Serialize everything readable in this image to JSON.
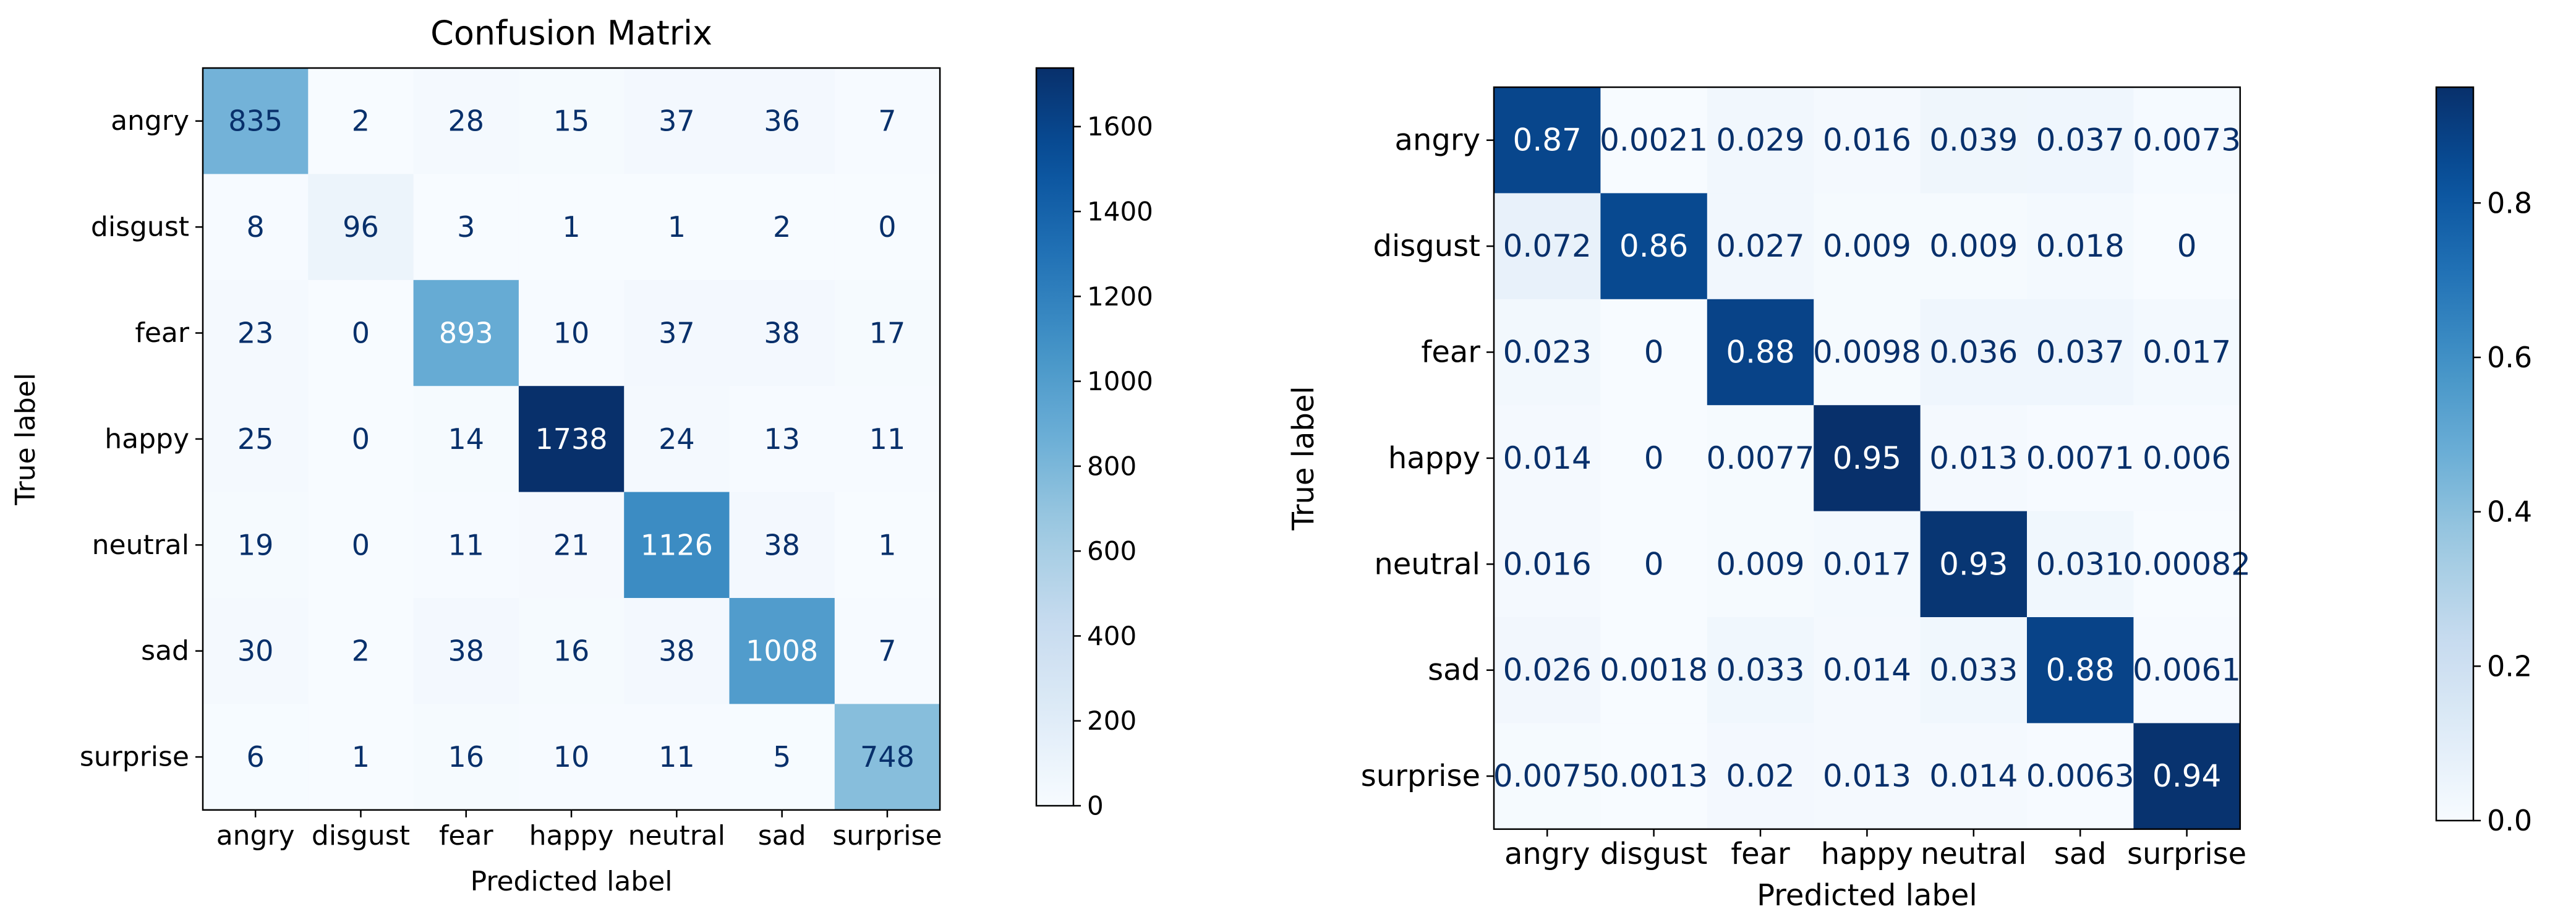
{
  "chart_data": [
    {
      "type": "heatmap",
      "title": "Confusion Matrix",
      "xlabel": "Predicted label",
      "ylabel": "True label",
      "row_labels": [
        "angry",
        "disgust",
        "fear",
        "happy",
        "neutral",
        "sad",
        "surprise"
      ],
      "col_labels": [
        "angry",
        "disgust",
        "fear",
        "happy",
        "neutral",
        "sad",
        "surprise"
      ],
      "values": [
        [
          835,
          2,
          28,
          15,
          37,
          36,
          7
        ],
        [
          8,
          96,
          3,
          1,
          1,
          2,
          0
        ],
        [
          23,
          0,
          893,
          10,
          37,
          38,
          17
        ],
        [
          25,
          0,
          14,
          1738,
          24,
          13,
          11
        ],
        [
          19,
          0,
          11,
          21,
          1126,
          38,
          1
        ],
        [
          30,
          2,
          38,
          16,
          38,
          1008,
          7
        ],
        [
          6,
          1,
          16,
          10,
          11,
          5,
          748
        ]
      ],
      "cell_text": [
        [
          "835",
          "2",
          "28",
          "15",
          "37",
          "36",
          "7"
        ],
        [
          "8",
          "96",
          "3",
          "1",
          "1",
          "2",
          "0"
        ],
        [
          "23",
          "0",
          "893",
          "10",
          "37",
          "38",
          "17"
        ],
        [
          "25",
          "0",
          "14",
          "1738",
          "24",
          "13",
          "11"
        ],
        [
          "19",
          "0",
          "11",
          "21",
          "1126",
          "38",
          "1"
        ],
        [
          "30",
          "2",
          "38",
          "16",
          "38",
          "1008",
          "7"
        ],
        [
          "6",
          "1",
          "16",
          "10",
          "11",
          "5",
          "748"
        ]
      ],
      "color_range": [
        0,
        1738
      ],
      "colorbar_ticks": [
        0,
        200,
        400,
        600,
        800,
        1000,
        1200,
        1400,
        1600
      ],
      "colorbar_tick_labels": [
        "0",
        "200",
        "400",
        "600",
        "800",
        "1000",
        "1200",
        "1400",
        "1600"
      ],
      "colormap": "Blues"
    },
    {
      "type": "heatmap",
      "title": "",
      "xlabel": "Predicted label",
      "ylabel": "True label",
      "row_labels": [
        "angry",
        "disgust",
        "fear",
        "happy",
        "neutral",
        "sad",
        "surprise"
      ],
      "col_labels": [
        "angry",
        "disgust",
        "fear",
        "happy",
        "neutral",
        "sad",
        "surprise"
      ],
      "values": [
        [
          0.87,
          0.0021,
          0.029,
          0.016,
          0.039,
          0.037,
          0.0073
        ],
        [
          0.072,
          0.86,
          0.027,
          0.009,
          0.009,
          0.018,
          0
        ],
        [
          0.023,
          0,
          0.88,
          0.0098,
          0.036,
          0.037,
          0.017
        ],
        [
          0.014,
          0,
          0.0077,
          0.95,
          0.013,
          0.0071,
          0.006
        ],
        [
          0.016,
          0,
          0.009,
          0.017,
          0.93,
          0.031,
          0.00082
        ],
        [
          0.026,
          0.0018,
          0.033,
          0.014,
          0.033,
          0.88,
          0.0061
        ],
        [
          0.0075,
          0.0013,
          0.02,
          0.013,
          0.014,
          0.0063,
          0.94
        ]
      ],
      "cell_text": [
        [
          "0.87",
          "0.0021",
          "0.029",
          "0.016",
          "0.039",
          "0.037",
          "0.0073"
        ],
        [
          "0.072",
          "0.86",
          "0.027",
          "0.009",
          "0.009",
          "0.018",
          "0"
        ],
        [
          "0.023",
          "0",
          "0.88",
          "0.0098",
          "0.036",
          "0.037",
          "0.017"
        ],
        [
          "0.014",
          "0",
          "0.0077",
          "0.95",
          "0.013",
          "0.0071",
          "0.006"
        ],
        [
          "0.016",
          "0",
          "0.009",
          "0.017",
          "0.93",
          "0.031",
          "0.00082"
        ],
        [
          "0.026",
          "0.0018",
          "0.033",
          "0.014",
          "0.033",
          "0.88",
          "0.0061"
        ],
        [
          "0.0075",
          "0.0013",
          "0.02",
          "0.013",
          "0.014",
          "0.0063",
          "0.94"
        ]
      ],
      "color_range": [
        0,
        0.95
      ],
      "colorbar_ticks": [
        0,
        0.2,
        0.4,
        0.6,
        0.8
      ],
      "colorbar_tick_labels": [
        "0.0",
        "0.2",
        "0.4",
        "0.6",
        "0.8"
      ],
      "colormap": "Blues"
    }
  ]
}
